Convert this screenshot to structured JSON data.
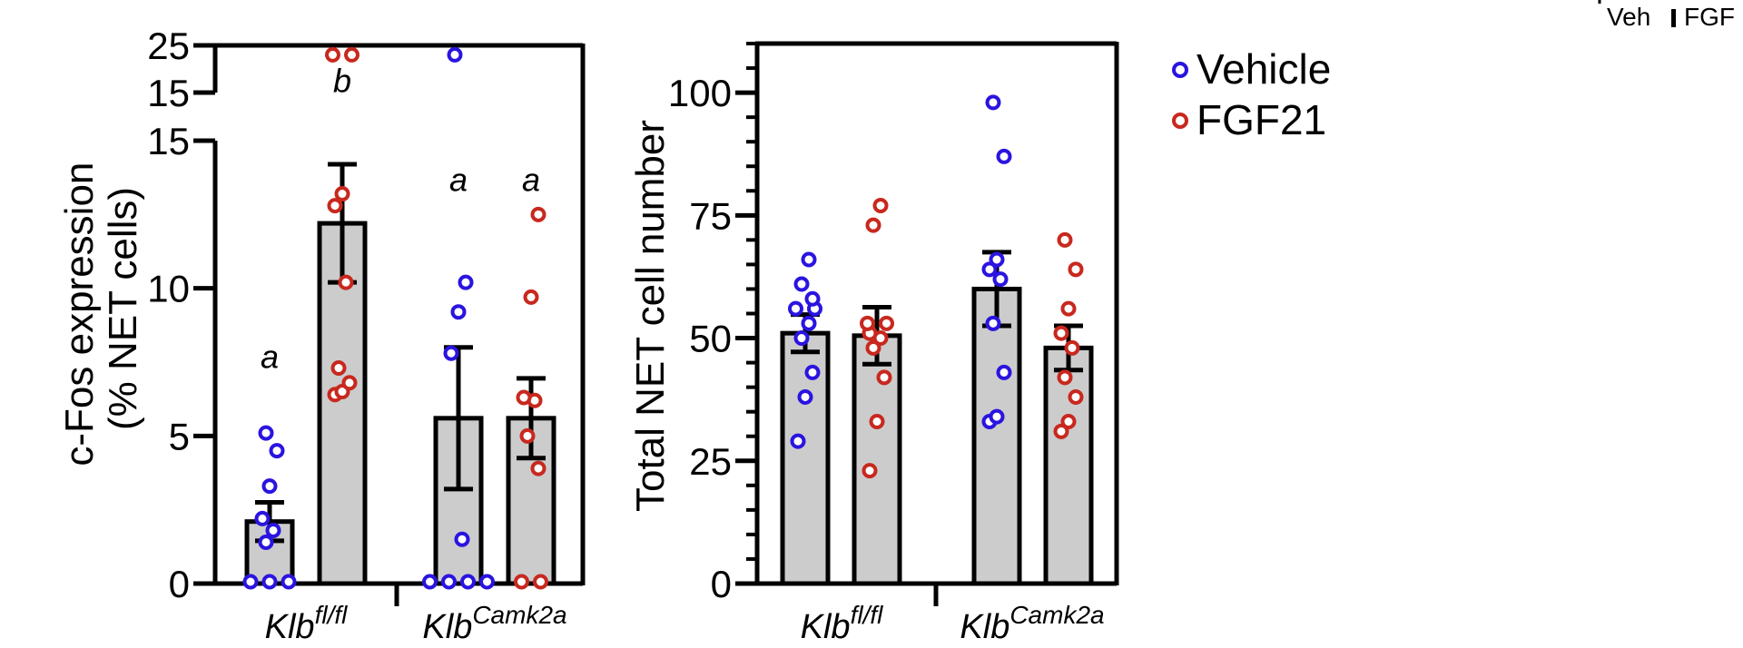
{
  "colors": {
    "vehicle": "#2a14e0",
    "fgf21": "#c8281e",
    "bar_fill": "#cccccc",
    "ink": "#000000"
  },
  "legend": {
    "items": [
      {
        "label": "Vehicle",
        "series": "vehicle"
      },
      {
        "label": "FGF21",
        "series": "fgf21"
      }
    ]
  },
  "corner_fragment": {
    "veh": "Veh",
    "fgf": "FGF"
  },
  "chart_data": [
    {
      "type": "bar",
      "id": "cfos",
      "title": "",
      "ylabel_line1": "c-Fos expression",
      "ylabel_line2": "(% NET cells)",
      "y_axis": "broken",
      "ylim_lower": [
        0,
        15
      ],
      "ylim_upper": [
        15,
        25
      ],
      "lower_ticks": [
        "0",
        "5",
        "10",
        "15"
      ],
      "lower_tick_values": [
        0,
        5,
        10,
        15
      ],
      "upper_ticks": [
        "15",
        "25"
      ],
      "upper_tick_values": [
        15,
        25
      ],
      "groups": [
        {
          "base": "Klb",
          "sup": "fl/fl"
        },
        {
          "base": "Klb",
          "sup": "Camk2a"
        }
      ],
      "bars": [
        {
          "group": 0,
          "series": "vehicle",
          "mean": 2.1,
          "sem": 0.65,
          "letter": "a",
          "letter_y": 7.3,
          "points": [
            0,
            0,
            0,
            1.4,
            1.8,
            2.2,
            3.3,
            4.5,
            5.1
          ]
        },
        {
          "group": 0,
          "series": "fgf21",
          "mean": 12.2,
          "sem": 2.0,
          "letter": "b",
          "letter_y": 15.1,
          "points": [
            6.4,
            6.5,
            6.8,
            7.3,
            10.2,
            12.8,
            13.2,
            23.0,
            23.0
          ]
        },
        {
          "group": 1,
          "series": "vehicle",
          "mean": 5.6,
          "sem": 2.4,
          "letter": "a",
          "letter_y": 13.3,
          "points": [
            0,
            0,
            0,
            0,
            1.5,
            7.8,
            9.2,
            10.2,
            23.0
          ]
        },
        {
          "group": 1,
          "series": "fgf21",
          "mean": 5.6,
          "sem": 1.35,
          "letter": "a",
          "letter_y": 13.3,
          "points": [
            0,
            0,
            3.9,
            5.0,
            6.2,
            6.3,
            9.7,
            12.5
          ]
        }
      ]
    },
    {
      "type": "bar",
      "id": "net",
      "title": "",
      "ylabel": "Total NET cell number",
      "ylim": [
        0,
        110
      ],
      "ticks": [
        "0",
        "25",
        "50",
        "75",
        "100"
      ],
      "tick_values": [
        0,
        25,
        50,
        75,
        100
      ],
      "groups": [
        {
          "base": "Klb",
          "sup": "fl/fl"
        },
        {
          "base": "Klb",
          "sup": "Camk2a"
        }
      ],
      "bars": [
        {
          "group": 0,
          "series": "vehicle",
          "mean": 51,
          "sem": 3.8,
          "points": [
            29,
            38,
            43,
            50,
            53,
            56,
            56,
            58,
            61,
            66
          ]
        },
        {
          "group": 0,
          "series": "fgf21",
          "mean": 50.5,
          "sem": 5.8,
          "points": [
            23,
            33,
            42,
            48,
            50,
            51,
            53,
            53,
            73,
            77
          ]
        },
        {
          "group": 1,
          "series": "vehicle",
          "mean": 60,
          "sem": 7.5,
          "points": [
            33,
            34,
            43,
            53,
            62,
            64,
            66,
            87,
            98
          ]
        },
        {
          "group": 1,
          "series": "fgf21",
          "mean": 48,
          "sem": 4.5,
          "points": [
            31,
            33,
            38,
            42,
            48,
            51,
            56,
            64,
            70
          ]
        }
      ]
    }
  ]
}
